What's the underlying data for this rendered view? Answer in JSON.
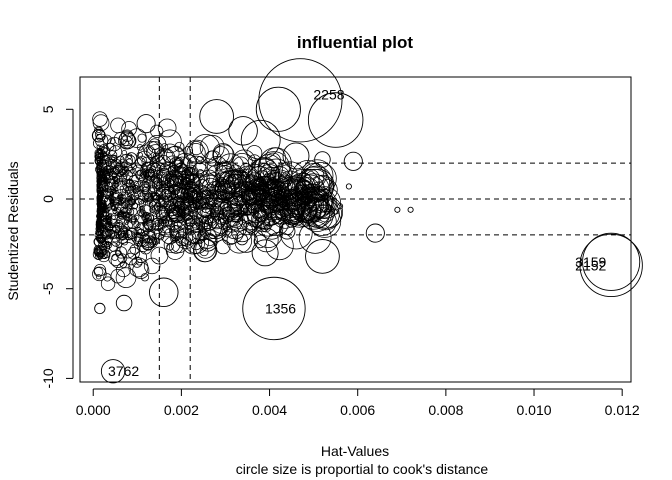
{
  "chart_data": {
    "type": "scatter",
    "title": "influential plot",
    "xlabel": "Hat-Values",
    "subtitle": "circle size is proportial to cook's distance",
    "ylabel": "Studentized Residuals",
    "xlim": [
      -0.0003,
      0.0122
    ],
    "ylim": [
      -10.2,
      6.8
    ],
    "x_ticks": [
      0.0,
      0.002,
      0.004,
      0.006,
      0.008,
      0.01,
      0.012
    ],
    "x_tick_labels": [
      "0.000",
      "0.002",
      "0.004",
      "0.006",
      "0.008",
      "0.010",
      "0.012"
    ],
    "y_ticks": [
      -10,
      -5,
      0,
      5
    ],
    "y_tick_labels": [
      "-10",
      "-5",
      "0",
      "5"
    ],
    "reference_lines": {
      "vertical": [
        0.0015,
        0.0022
      ],
      "horizontal": [
        -2,
        0,
        2
      ],
      "style": "dashed"
    },
    "labeled_points": [
      {
        "label": "2258",
        "x": 0.0047,
        "y": 5.5,
        "size": 3.2
      },
      {
        "label": "1356",
        "x": 0.0041,
        "y": -6.1,
        "size": 2.4
      },
      {
        "label": "3762",
        "x": 0.00045,
        "y": -9.6,
        "size": 0.9
      },
      {
        "label": "2152",
        "x": 0.01175,
        "y": -3.7,
        "size": 2.4
      },
      {
        "label": "3159",
        "x": 0.01175,
        "y": -3.5,
        "size": 2.2
      }
    ],
    "highlighted_points": [
      {
        "x": 0.0055,
        "y": 4.4,
        "size": 2.1
      },
      {
        "x": 0.0042,
        "y": 5.0,
        "size": 1.7
      },
      {
        "x": 0.0038,
        "y": 3.3,
        "size": 1.5
      },
      {
        "x": 0.0028,
        "y": 4.6,
        "size": 1.3
      },
      {
        "x": 0.0046,
        "y": 2.4,
        "size": 1.0
      },
      {
        "x": 0.0052,
        "y": -3.2,
        "size": 1.3
      },
      {
        "x": 0.0039,
        "y": -3.0,
        "size": 1.0
      },
      {
        "x": 0.0016,
        "y": -5.2,
        "size": 1.1
      },
      {
        "x": 0.0064,
        "y": -1.9,
        "size": 0.7
      },
      {
        "x": 0.0059,
        "y": 2.1,
        "size": 0.7
      },
      {
        "x": 0.0044,
        "y": -1.8,
        "size": 0.6
      },
      {
        "x": 0.0052,
        "y": 2.2,
        "size": 0.6
      },
      {
        "x": 0.0012,
        "y": 4.2,
        "size": 0.7
      },
      {
        "x": 0.0034,
        "y": 3.8,
        "size": 1.1
      },
      {
        "x": 0.0026,
        "y": -2.4,
        "size": 0.7
      },
      {
        "x": 0.0007,
        "y": -5.8,
        "size": 0.6
      },
      {
        "x": 0.00015,
        "y": -6.1,
        "size": 0.4
      },
      {
        "x": 0.0069,
        "y": -0.6,
        "size": 0.2
      },
      {
        "x": 0.0072,
        "y": -0.6,
        "size": 0.2
      },
      {
        "x": 0.0056,
        "y": -0.4,
        "size": 0.2
      },
      {
        "x": 0.0055,
        "y": -0.7,
        "size": 0.2
      },
      {
        "x": 0.0058,
        "y": 0.7,
        "size": 0.2
      },
      {
        "x": 0.0048,
        "y": 0.4,
        "size": 0.2
      },
      {
        "x": 0.0053,
        "y": -0.7,
        "size": 0.2
      }
    ],
    "size_legend": "circle area proportional to cook's distance"
  }
}
